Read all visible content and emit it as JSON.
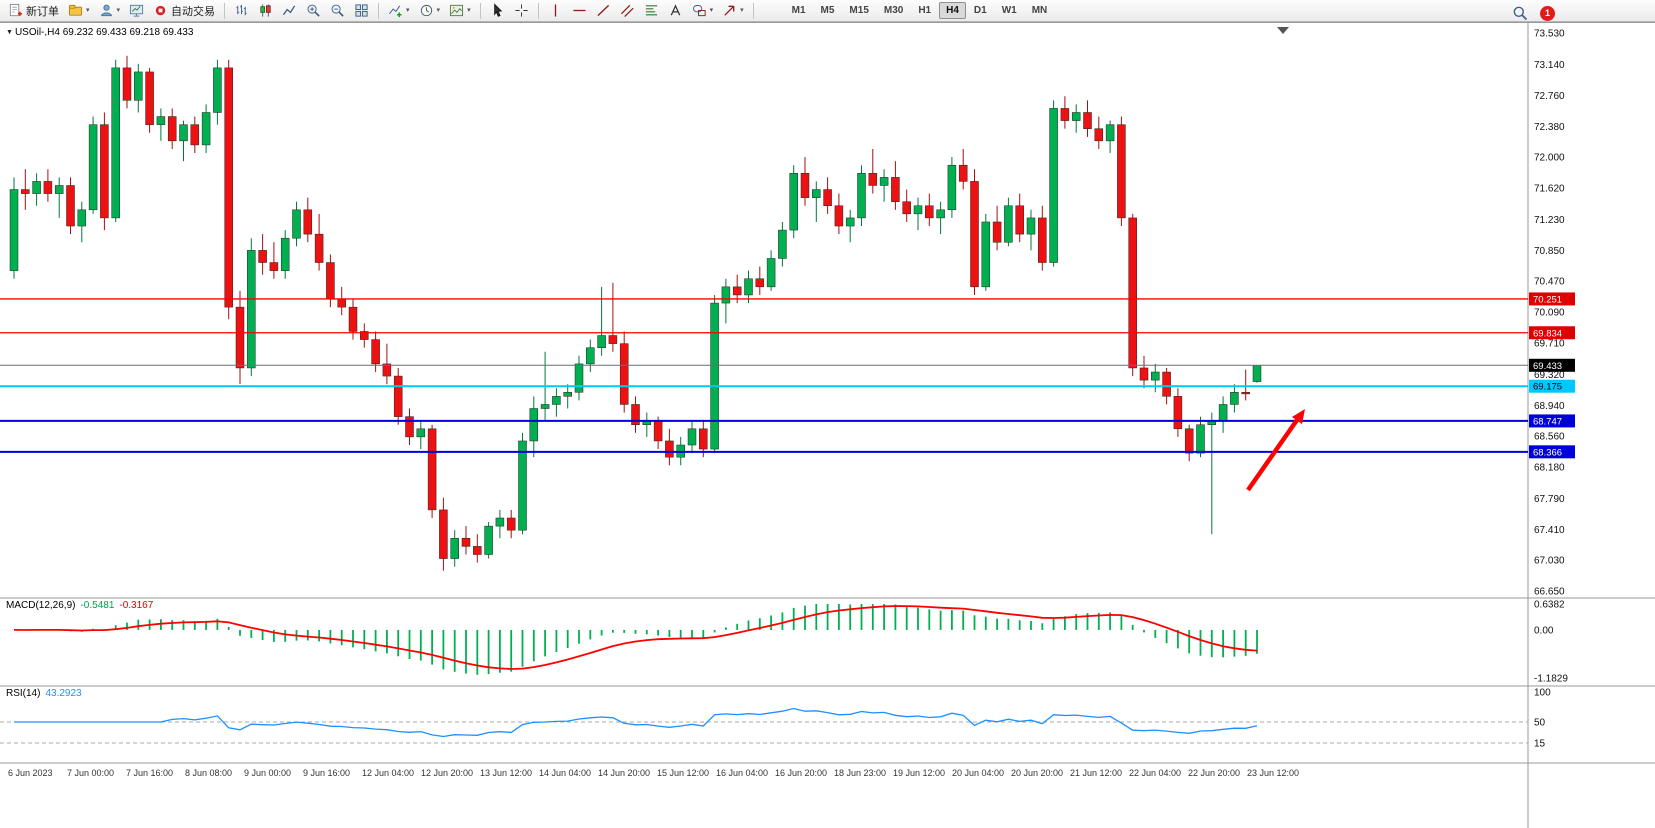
{
  "toolbar": {
    "new_order": "新订单",
    "autotrading": "自动交易",
    "timeframes": [
      "M1",
      "M5",
      "M15",
      "M30",
      "H1",
      "H4",
      "D1",
      "W1",
      "MN"
    ],
    "active_timeframe": "H4",
    "notification_count": "1"
  },
  "icons": {
    "dropdown_caret": "▾",
    "symbol_dropdown": "▼"
  },
  "symbol_header": {
    "text": "USOil-,H4  69.232 69.433 69.218 69.433"
  },
  "chart_data": {
    "type": "candlestick",
    "title": "USOil-,H4",
    "up_color": "#00B050",
    "down_color": "#EE1111",
    "y_axis": {
      "max": 73.53,
      "min": 66.65,
      "labels": [
        "73.530",
        "73.140",
        "72.760",
        "72.380",
        "72.000",
        "71.620",
        "71.230",
        "70.850",
        "70.470",
        "70.090",
        "69.710",
        "69.320",
        "68.940",
        "68.560",
        "68.180",
        "67.790",
        "67.410",
        "67.030",
        "66.650"
      ]
    },
    "x_axis": {
      "labels": [
        "6 Jun 2023",
        "7 Jun 00:00",
        "7 Jun 16:00",
        "8 Jun 08:00",
        "9 Jun 00:00",
        "9 Jun 16:00",
        "12 Jun 04:00",
        "12 Jun 20:00",
        "13 Jun 12:00",
        "14 Jun 04:00",
        "14 Jun 20:00",
        "15 Jun 12:00",
        "16 Jun 04:00",
        "16 Jun 20:00",
        "18 Jun 23:00",
        "19 Jun 12:00",
        "20 Jun 04:00",
        "20 Jun 20:00",
        "21 Jun 12:00",
        "22 Jun 04:00",
        "22 Jun 20:00",
        "23 Jun 12:00"
      ]
    },
    "horizontal_lines": [
      {
        "name": "resistance-line-1",
        "price": 70.251,
        "label": "70.251",
        "line_color": "#FF0000",
        "line_width": 1.4,
        "tag_bg": "#E00000",
        "tag_text": "#FFFFFF"
      },
      {
        "name": "resistance-line-2",
        "price": 69.834,
        "label": "69.834",
        "line_color": "#FF0000",
        "line_width": 1.2,
        "tag_bg": "#E00000",
        "tag_text": "#FFFFFF"
      },
      {
        "name": "current-price-line",
        "price": 69.433,
        "label": "69.433",
        "line_color": "#6E6E6E",
        "line_width": 1,
        "tag_bg": "#000000",
        "tag_text": "#FFFFFF"
      },
      {
        "name": "support-line-cyan",
        "price": 69.175,
        "label": "69.175",
        "line_color": "#00C8FF",
        "line_width": 2,
        "tag_bg": "#00C8FF",
        "tag_text": "#000000"
      },
      {
        "name": "support-line-blue-1",
        "price": 68.747,
        "label": "68.747",
        "line_color": "#0000DD",
        "line_width": 2,
        "tag_bg": "#0000DD",
        "tag_text": "#FFFFFF"
      },
      {
        "name": "support-line-blue-2",
        "price": 68.366,
        "label": "68.366",
        "line_color": "#0000DD",
        "line_width": 2,
        "tag_bg": "#0000DD",
        "tag_text": "#FFFFFF"
      }
    ],
    "annotation_arrow": {
      "color": "#FF0000"
    },
    "ohlc": [
      [
        70.6,
        71.75,
        70.5,
        71.6
      ],
      [
        71.6,
        71.85,
        71.35,
        71.55
      ],
      [
        71.55,
        71.8,
        71.4,
        71.7
      ],
      [
        71.7,
        71.85,
        71.45,
        71.55
      ],
      [
        71.55,
        71.75,
        71.25,
        71.65
      ],
      [
        71.65,
        71.75,
        71.05,
        71.15
      ],
      [
        71.15,
        71.45,
        70.95,
        71.35
      ],
      [
        71.35,
        72.5,
        71.3,
        72.4
      ],
      [
        72.4,
        72.55,
        71.1,
        71.25
      ],
      [
        71.25,
        73.2,
        71.2,
        73.1
      ],
      [
        73.1,
        73.25,
        72.6,
        72.7
      ],
      [
        72.7,
        73.15,
        72.55,
        73.05
      ],
      [
        73.05,
        73.1,
        72.3,
        72.4
      ],
      [
        72.4,
        72.6,
        72.2,
        72.5
      ],
      [
        72.5,
        72.6,
        72.1,
        72.2
      ],
      [
        72.2,
        72.45,
        71.95,
        72.4
      ],
      [
        72.4,
        72.5,
        72.05,
        72.15
      ],
      [
        72.15,
        72.65,
        72.05,
        72.55
      ],
      [
        72.55,
        73.2,
        72.4,
        73.1
      ],
      [
        73.1,
        73.2,
        70.0,
        70.15
      ],
      [
        70.15,
        70.35,
        69.2,
        69.4
      ],
      [
        69.4,
        71.0,
        69.3,
        70.85
      ],
      [
        70.85,
        71.05,
        70.55,
        70.7
      ],
      [
        70.7,
        70.95,
        70.5,
        70.6
      ],
      [
        70.6,
        71.1,
        70.5,
        71.0
      ],
      [
        71.0,
        71.45,
        70.9,
        71.35
      ],
      [
        71.35,
        71.5,
        70.95,
        71.05
      ],
      [
        71.05,
        71.3,
        70.6,
        70.7
      ],
      [
        70.7,
        70.8,
        70.15,
        70.25
      ],
      [
        70.25,
        70.4,
        70.05,
        70.15
      ],
      [
        70.15,
        70.25,
        69.75,
        69.85
      ],
      [
        69.85,
        69.95,
        69.65,
        69.75
      ],
      [
        69.75,
        69.85,
        69.35,
        69.45
      ],
      [
        69.45,
        69.7,
        69.2,
        69.3
      ],
      [
        69.3,
        69.4,
        68.7,
        68.8
      ],
      [
        68.8,
        68.9,
        68.45,
        68.55
      ],
      [
        68.55,
        68.75,
        68.4,
        68.65
      ],
      [
        68.65,
        68.7,
        67.55,
        67.65
      ],
      [
        67.65,
        67.8,
        66.9,
        67.05
      ],
      [
        67.05,
        67.4,
        66.95,
        67.3
      ],
      [
        67.3,
        67.45,
        67.1,
        67.2
      ],
      [
        67.2,
        67.35,
        67.0,
        67.1
      ],
      [
        67.1,
        67.5,
        67.05,
        67.45
      ],
      [
        67.45,
        67.65,
        67.3,
        67.55
      ],
      [
        67.55,
        67.65,
        67.3,
        67.4
      ],
      [
        67.4,
        68.6,
        67.35,
        68.5
      ],
      [
        68.5,
        69.05,
        68.3,
        68.9
      ],
      [
        68.9,
        69.6,
        68.75,
        68.95
      ],
      [
        68.95,
        69.15,
        68.8,
        69.05
      ],
      [
        69.05,
        69.2,
        68.9,
        69.1
      ],
      [
        69.1,
        69.55,
        69.0,
        69.45
      ],
      [
        69.45,
        69.75,
        69.35,
        69.65
      ],
      [
        69.65,
        70.4,
        69.55,
        69.8
      ],
      [
        69.8,
        70.45,
        69.6,
        69.7
      ],
      [
        69.7,
        69.85,
        68.85,
        68.95
      ],
      [
        68.95,
        69.05,
        68.6,
        68.7
      ],
      [
        68.7,
        68.85,
        68.55,
        68.75
      ],
      [
        68.75,
        68.8,
        68.4,
        68.5
      ],
      [
        68.5,
        68.65,
        68.2,
        68.3
      ],
      [
        68.3,
        68.55,
        68.2,
        68.45
      ],
      [
        68.45,
        68.75,
        68.35,
        68.65
      ],
      [
        68.65,
        68.75,
        68.3,
        68.4
      ],
      [
        68.4,
        70.3,
        68.35,
        70.2
      ],
      [
        70.2,
        70.5,
        69.95,
        70.4
      ],
      [
        70.4,
        70.55,
        70.2,
        70.3
      ],
      [
        70.3,
        70.6,
        70.2,
        70.5
      ],
      [
        70.5,
        70.65,
        70.3,
        70.4
      ],
      [
        70.4,
        70.85,
        70.35,
        70.75
      ],
      [
        70.75,
        71.2,
        70.65,
        71.1
      ],
      [
        71.1,
        71.9,
        71.0,
        71.8
      ],
      [
        71.8,
        72.0,
        71.4,
        71.5
      ],
      [
        71.5,
        71.7,
        71.2,
        71.6
      ],
      [
        71.6,
        71.75,
        71.3,
        71.4
      ],
      [
        71.4,
        71.55,
        71.05,
        71.15
      ],
      [
        71.15,
        71.35,
        70.95,
        71.25
      ],
      [
        71.25,
        71.9,
        71.15,
        71.8
      ],
      [
        71.8,
        72.1,
        71.55,
        71.65
      ],
      [
        71.65,
        71.85,
        71.45,
        71.75
      ],
      [
        71.75,
        71.95,
        71.35,
        71.45
      ],
      [
        71.45,
        71.6,
        71.2,
        71.3
      ],
      [
        71.3,
        71.5,
        71.1,
        71.4
      ],
      [
        71.4,
        71.55,
        71.15,
        71.25
      ],
      [
        71.25,
        71.45,
        71.05,
        71.35
      ],
      [
        71.35,
        72.0,
        71.25,
        71.9
      ],
      [
        71.9,
        72.1,
        71.6,
        71.7
      ],
      [
        71.7,
        71.85,
        70.3,
        70.4
      ],
      [
        70.4,
        71.3,
        70.35,
        71.2
      ],
      [
        71.2,
        71.4,
        70.85,
        70.95
      ],
      [
        70.95,
        71.5,
        70.9,
        71.4
      ],
      [
        71.4,
        71.55,
        70.95,
        71.05
      ],
      [
        71.05,
        71.35,
        70.85,
        71.25
      ],
      [
        71.25,
        71.4,
        70.6,
        70.7
      ],
      [
        70.7,
        72.7,
        70.65,
        72.6
      ],
      [
        72.6,
        72.75,
        72.35,
        72.45
      ],
      [
        72.45,
        72.65,
        72.3,
        72.55
      ],
      [
        72.55,
        72.7,
        72.25,
        72.35
      ],
      [
        72.35,
        72.5,
        72.1,
        72.2
      ],
      [
        72.2,
        72.45,
        72.05,
        72.4
      ],
      [
        72.4,
        72.5,
        71.15,
        71.25
      ],
      [
        71.25,
        71.3,
        69.3,
        69.4
      ],
      [
        69.4,
        69.55,
        69.15,
        69.25
      ],
      [
        69.25,
        69.45,
        69.1,
        69.35
      ],
      [
        69.35,
        69.4,
        68.95,
        69.05
      ],
      [
        69.05,
        69.15,
        68.55,
        68.65
      ],
      [
        68.65,
        68.7,
        68.25,
        68.35
      ],
      [
        68.35,
        68.8,
        68.3,
        68.7
      ],
      [
        68.7,
        68.85,
        67.35,
        68.75
      ],
      [
        68.75,
        69.05,
        68.6,
        68.95
      ],
      [
        68.95,
        69.2,
        68.85,
        69.1
      ],
      [
        69.1,
        69.38,
        69.0,
        69.08
      ],
      [
        69.232,
        69.433,
        69.218,
        69.433
      ]
    ],
    "indicators": {
      "macd": {
        "name": "MACD(12,26,9)",
        "main_value": "-0.5481",
        "signal_value": "-0.3167",
        "fast": 12,
        "slow": 26,
        "signal": 9,
        "scale_max": 0.6382,
        "scale_min": -1.1829,
        "axis_labels": [
          "0.6382",
          "0.00",
          "-1.1829"
        ],
        "axis_values": [
          0.6382,
          0,
          -1.1829
        ],
        "histogram_color": "#00B050",
        "signal_color": "#FF0000"
      },
      "rsi": {
        "name": "RSI(14)",
        "value": "43.2923",
        "period": 14,
        "scale_max": 100,
        "scale_min": 0,
        "axis_labels": [
          "100",
          "50",
          "15"
        ],
        "axis_values": [
          100,
          50,
          15
        ],
        "levels": [
          50,
          15
        ],
        "line_color": "#1E90FF"
      }
    }
  }
}
